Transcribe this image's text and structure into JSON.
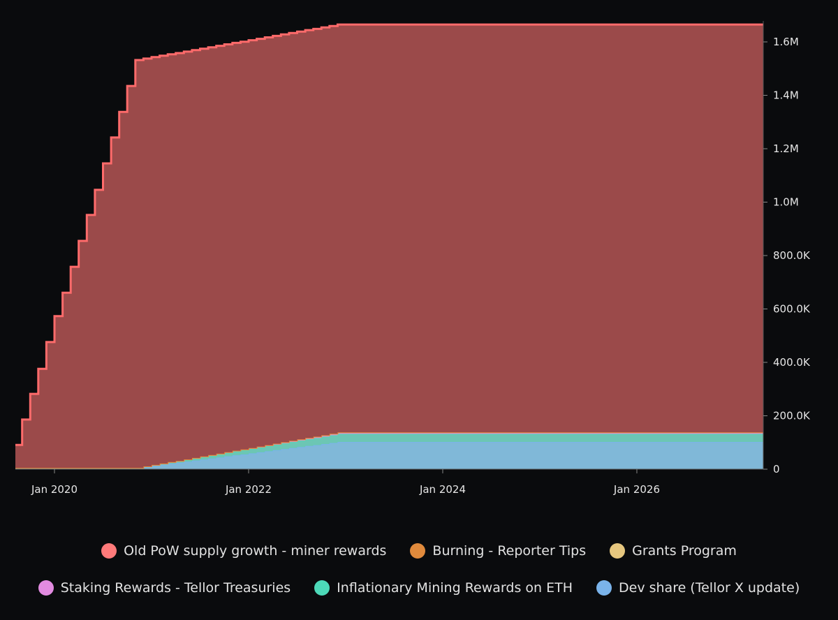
{
  "chart_data": {
    "type": "area",
    "stacked": true,
    "step": true,
    "title": "",
    "xlabel": "",
    "ylabel": "",
    "y_axis_position": "right",
    "ylim": [
      0,
      1680000
    ],
    "xlim": [
      "2019-08",
      "2027-04"
    ],
    "grid": false,
    "legend_position": "bottom",
    "x_ticks": [
      "Jan 2020",
      "Jan 2022",
      "Jan 2024",
      "Jan 2026"
    ],
    "y_ticks": [
      "0",
      "200.0K",
      "400.0K",
      "600.0K",
      "800.0K",
      "1.0M",
      "1.2M",
      "1.4M",
      "1.6M"
    ],
    "x": [
      "2019-08",
      "2019-09",
      "2019-10",
      "2019-11",
      "2019-12",
      "2020-01",
      "2020-02",
      "2020-03",
      "2020-04",
      "2020-05",
      "2020-06",
      "2020-07",
      "2020-08",
      "2020-09",
      "2020-10",
      "2020-11",
      "2020-12",
      "2021-01",
      "2021-02",
      "2021-03",
      "2021-04",
      "2021-05",
      "2021-06",
      "2021-07",
      "2021-08",
      "2021-09",
      "2021-10",
      "2021-11",
      "2021-12",
      "2022-01",
      "2022-02",
      "2022-03",
      "2022-04",
      "2022-05",
      "2022-06",
      "2022-07",
      "2022-08",
      "2022-09",
      "2022-10",
      "2022-11",
      "2022-12",
      "2027-04"
    ],
    "series": [
      {
        "name": "Dev share (Tellor X update)",
        "color": "#7ab3ea",
        "fill": "#80b8d8",
        "values": [
          5000,
          5000,
          5000,
          5000,
          5000,
          5000,
          5000,
          5000,
          5000,
          5000,
          5000,
          5000,
          5000,
          5000,
          5000,
          5000,
          9000,
          13000,
          17000,
          21000,
          24000,
          28000,
          32000,
          36000,
          40000,
          44000,
          48000,
          52000,
          55000,
          59000,
          63000,
          67000,
          71000,
          75000,
          79000,
          83000,
          87000,
          90000,
          94000,
          98000,
          102000,
          102000
        ]
      },
      {
        "name": "Inflationary Mining Rewards on ETH",
        "color": "#4dd9b8",
        "fill": "#6cc6b4",
        "values": [
          0,
          0,
          0,
          0,
          0,
          0,
          0,
          0,
          0,
          0,
          0,
          0,
          0,
          0,
          0,
          0,
          1200,
          2400,
          3600,
          4800,
          6000,
          7200,
          8400,
          9600,
          10800,
          12000,
          13200,
          14400,
          15600,
          16800,
          18000,
          19200,
          20400,
          21600,
          22800,
          24000,
          25200,
          26400,
          27600,
          28800,
          30000,
          30000
        ]
      },
      {
        "name": "Staking Rewards - Tellor Treasuries",
        "color": "#e28be0",
        "fill": "#d98fd8",
        "values": [
          0,
          0,
          0,
          0,
          0,
          0,
          0,
          0,
          0,
          0,
          0,
          0,
          0,
          0,
          0,
          0,
          200,
          500,
          700,
          1000,
          1200,
          1400,
          1700,
          1900,
          2200,
          2400,
          2600,
          2900,
          3100,
          3400,
          3600,
          3800,
          4100,
          4300,
          4600,
          4800,
          5000,
          5300,
          5500,
          5800,
          6000,
          6000
        ]
      },
      {
        "name": "Grants Program",
        "color": "#e6c77f",
        "fill": "#e6c77f",
        "values": [
          0,
          0,
          0,
          0,
          0,
          0,
          0,
          0,
          0,
          0,
          0,
          0,
          0,
          0,
          0,
          0,
          0,
          0,
          0,
          0,
          0,
          0,
          0,
          0,
          0,
          0,
          0,
          0,
          0,
          0,
          0,
          0,
          0,
          0,
          0,
          0,
          0,
          0,
          0,
          0,
          0,
          0
        ]
      },
      {
        "name": "Burning - Reporter Tips",
        "color": "#e08a3c",
        "fill": "#e08a3c",
        "values": [
          0,
          0,
          0,
          0,
          0,
          0,
          0,
          0,
          0,
          0,
          0,
          0,
          0,
          0,
          0,
          0,
          0,
          0,
          0,
          0,
          0,
          0,
          0,
          0,
          0,
          0,
          0,
          0,
          0,
          0,
          0,
          0,
          0,
          0,
          0,
          0,
          0,
          0,
          0,
          0,
          0,
          0
        ]
      },
      {
        "name": "Old PoW supply growth - miner rewards",
        "color": "#ff6b6b",
        "fill": "#9b4a4a",
        "values": [
          86000,
          181000,
          277000,
          371000,
          471000,
          568000,
          656000,
          753000,
          850000,
          947000,
          1041000,
          1140000,
          1237000,
          1333000,
          1430000,
          1527000,
          1527000,
          1527000,
          1527000,
          1527000,
          1527000,
          1527000,
          1527000,
          1527000,
          1527000,
          1527000,
          1527000,
          1527000,
          1527000,
          1527000,
          1527000,
          1527000,
          1527000,
          1527000,
          1527000,
          1527000,
          1527000,
          1527000,
          1527000,
          1527000,
          1527000,
          1527000
        ]
      }
    ]
  },
  "legend": {
    "row1": [
      {
        "label": "Old PoW supply growth - miner rewards",
        "color": "#ff7a7a"
      },
      {
        "label": "Burning - Reporter Tips",
        "color": "#e08a3c"
      },
      {
        "label": "Grants Program",
        "color": "#e6c77f"
      }
    ],
    "row2": [
      {
        "label": "Staking Rewards - Tellor Treasuries",
        "color": "#e28be0"
      },
      {
        "label": "Inflationary Mining Rewards on ETH",
        "color": "#4dd9b8"
      },
      {
        "label": "Dev share (Tellor X update)",
        "color": "#7ab3ea"
      }
    ]
  }
}
